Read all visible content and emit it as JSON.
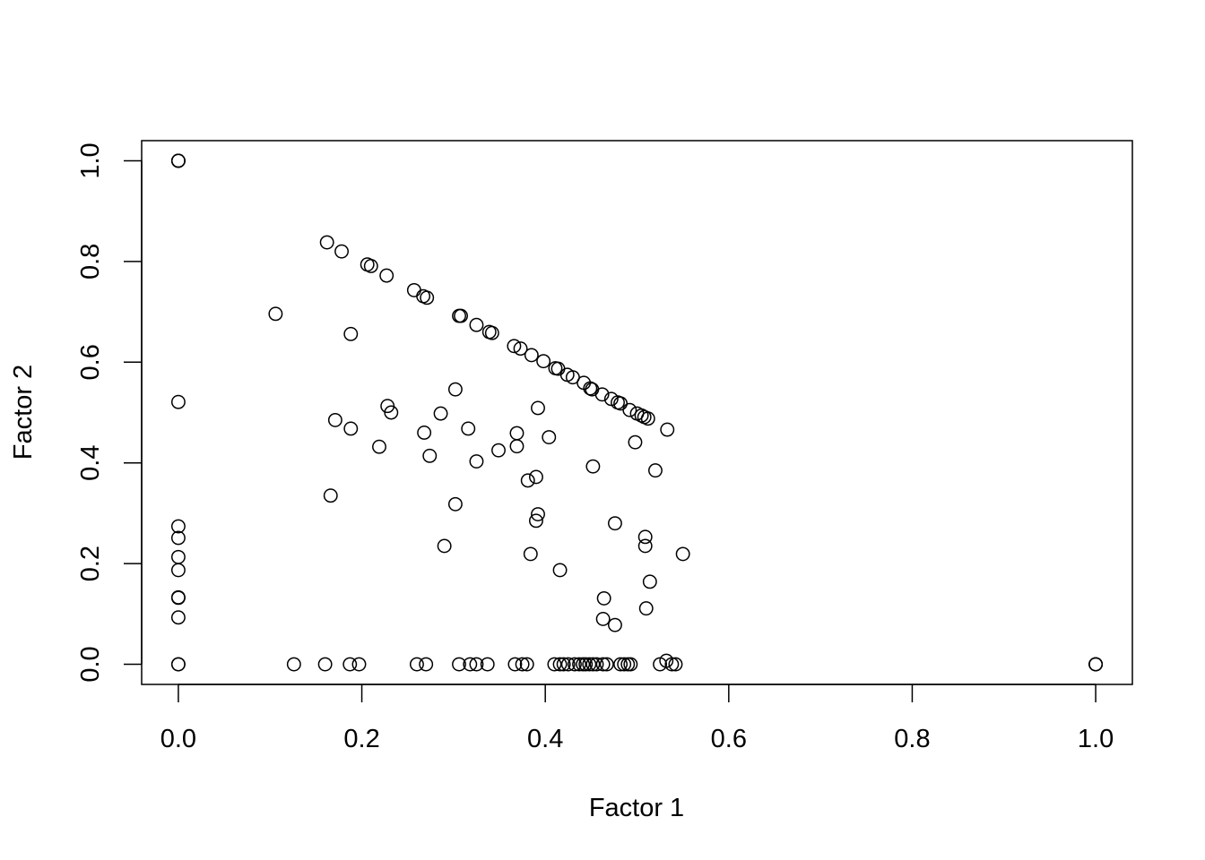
{
  "chart_data": {
    "type": "scatter",
    "title": "",
    "xlabel": "Factor 1",
    "ylabel": "Factor 2",
    "xlim": [
      -0.04,
      1.04
    ],
    "ylim": [
      -0.04,
      1.04
    ],
    "x_ticks": [
      0.0,
      0.2,
      0.4,
      0.6,
      0.8,
      1.0
    ],
    "x_tick_labels": [
      "0.0",
      "0.2",
      "0.4",
      "0.6",
      "0.8",
      "1.0"
    ],
    "y_ticks": [
      0.0,
      0.2,
      0.4,
      0.6,
      0.8,
      1.0
    ],
    "y_tick_labels": [
      "0.0",
      "0.2",
      "0.4",
      "0.6",
      "0.8",
      "1.0"
    ],
    "marker": "open-circle",
    "marker_color": "#000000",
    "grid": false,
    "legend": "none",
    "points": [
      [
        0.0,
        1.0
      ],
      [
        0.0,
        1.0
      ],
      [
        0.0,
        1.0
      ],
      [
        0.0,
        0.521
      ],
      [
        0.0,
        0.274
      ],
      [
        0.0,
        0.251
      ],
      [
        0.0,
        0.213
      ],
      [
        0.0,
        0.187
      ],
      [
        0.0,
        0.133
      ],
      [
        0.0,
        0.132
      ],
      [
        0.0,
        0.093
      ],
      [
        0.0,
        0.0
      ],
      [
        0.0,
        0.0
      ],
      [
        1.0,
        0.0
      ],
      [
        1.0,
        0.0
      ],
      [
        1.0,
        0.0
      ],
      [
        0.162,
        0.838
      ],
      [
        0.178,
        0.82
      ],
      [
        0.206,
        0.794
      ],
      [
        0.21,
        0.791
      ],
      [
        0.227,
        0.772
      ],
      [
        0.257,
        0.743
      ],
      [
        0.267,
        0.731
      ],
      [
        0.271,
        0.728
      ],
      [
        0.306,
        0.692
      ],
      [
        0.308,
        0.692
      ],
      [
        0.325,
        0.674
      ],
      [
        0.339,
        0.66
      ],
      [
        0.342,
        0.658
      ],
      [
        0.366,
        0.632
      ],
      [
        0.373,
        0.627
      ],
      [
        0.385,
        0.614
      ],
      [
        0.398,
        0.602
      ],
      [
        0.411,
        0.588
      ],
      [
        0.414,
        0.587
      ],
      [
        0.424,
        0.575
      ],
      [
        0.43,
        0.57
      ],
      [
        0.442,
        0.559
      ],
      [
        0.449,
        0.548
      ],
      [
        0.451,
        0.546
      ],
      [
        0.462,
        0.536
      ],
      [
        0.472,
        0.527
      ],
      [
        0.479,
        0.52
      ],
      [
        0.482,
        0.518
      ],
      [
        0.492,
        0.505
      ],
      [
        0.5,
        0.498
      ],
      [
        0.505,
        0.494
      ],
      [
        0.508,
        0.491
      ],
      [
        0.512,
        0.488
      ],
      [
        0.533,
        0.466
      ],
      [
        0.106,
        0.696
      ],
      [
        0.188,
        0.656
      ],
      [
        0.228,
        0.513
      ],
      [
        0.232,
        0.5
      ],
      [
        0.171,
        0.485
      ],
      [
        0.188,
        0.468
      ],
      [
        0.219,
        0.432
      ],
      [
        0.166,
        0.335
      ],
      [
        0.268,
        0.46
      ],
      [
        0.274,
        0.414
      ],
      [
        0.286,
        0.498
      ],
      [
        0.302,
        0.546
      ],
      [
        0.316,
        0.468
      ],
      [
        0.325,
        0.403
      ],
      [
        0.349,
        0.425
      ],
      [
        0.302,
        0.318
      ],
      [
        0.29,
        0.235
      ],
      [
        0.369,
        0.459
      ],
      [
        0.369,
        0.433
      ],
      [
        0.392,
        0.509
      ],
      [
        0.404,
        0.451
      ],
      [
        0.39,
        0.372
      ],
      [
        0.381,
        0.365
      ],
      [
        0.392,
        0.298
      ],
      [
        0.39,
        0.285
      ],
      [
        0.384,
        0.219
      ],
      [
        0.416,
        0.187
      ],
      [
        0.452,
        0.393
      ],
      [
        0.498,
        0.441
      ],
      [
        0.52,
        0.385
      ],
      [
        0.476,
        0.28
      ],
      [
        0.509,
        0.253
      ],
      [
        0.509,
        0.235
      ],
      [
        0.55,
        0.219
      ],
      [
        0.514,
        0.164
      ],
      [
        0.464,
        0.131
      ],
      [
        0.463,
        0.09
      ],
      [
        0.476,
        0.078
      ],
      [
        0.51,
        0.111
      ],
      [
        0.126,
        0.0
      ],
      [
        0.16,
        0.0
      ],
      [
        0.187,
        0.0
      ],
      [
        0.197,
        0.0
      ],
      [
        0.26,
        0.0
      ],
      [
        0.27,
        0.0
      ],
      [
        0.306,
        0.0
      ],
      [
        0.318,
        0.0
      ],
      [
        0.325,
        0.0
      ],
      [
        0.337,
        0.0
      ],
      [
        0.367,
        0.0
      ],
      [
        0.375,
        0.0
      ],
      [
        0.38,
        0.0
      ],
      [
        0.41,
        0.0
      ],
      [
        0.416,
        0.0
      ],
      [
        0.42,
        0.0
      ],
      [
        0.425,
        0.0
      ],
      [
        0.432,
        0.0
      ],
      [
        0.437,
        0.0
      ],
      [
        0.441,
        0.0
      ],
      [
        0.444,
        0.0
      ],
      [
        0.448,
        0.0
      ],
      [
        0.452,
        0.0
      ],
      [
        0.456,
        0.0
      ],
      [
        0.463,
        0.0
      ],
      [
        0.467,
        0.0
      ],
      [
        0.482,
        0.0
      ],
      [
        0.486,
        0.0
      ],
      [
        0.49,
        0.0
      ],
      [
        0.493,
        0.0
      ],
      [
        0.525,
        0.0
      ],
      [
        0.532,
        0.007
      ],
      [
        0.538,
        0.0
      ],
      [
        0.542,
        0.0
      ]
    ]
  }
}
